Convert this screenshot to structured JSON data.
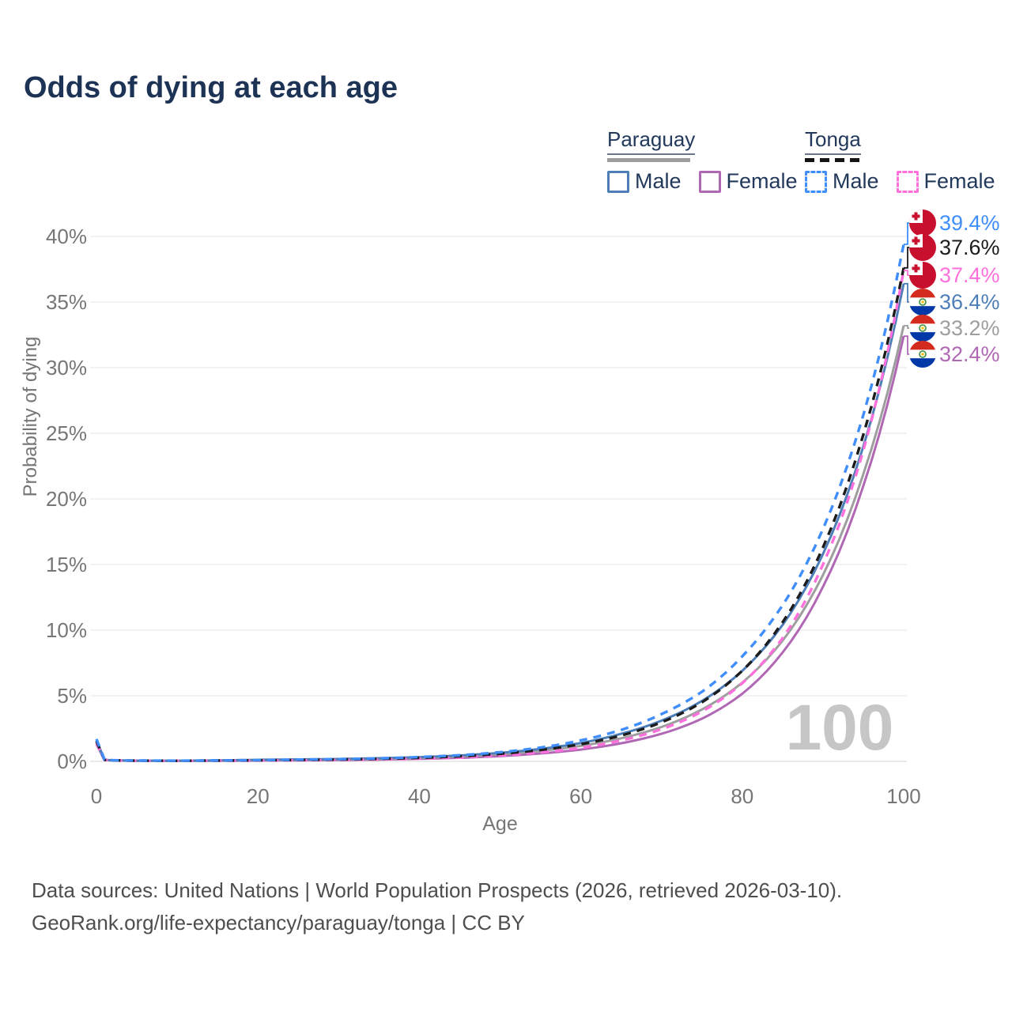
{
  "title": "Odds of dying at each age",
  "watermark_age": "100",
  "legend": {
    "groups": [
      {
        "country": "Paraguay",
        "line_style": "solid",
        "line_color": "#9e9e9e",
        "items": [
          {
            "label": "Male",
            "color": "#4d7eb8",
            "dashed": false
          },
          {
            "label": "Female",
            "color": "#b168b4",
            "dashed": false
          }
        ]
      },
      {
        "country": "Tonga",
        "line_style": "dashed",
        "line_color": "#141414",
        "items": [
          {
            "label": "Male",
            "color": "#3f8efc",
            "dashed": true
          },
          {
            "label": "Female",
            "color": "#ff70dc",
            "dashed": true
          }
        ]
      }
    ]
  },
  "footer": {
    "line1": "Data sources: United Nations | World Population Prospects (2026, retrieved 2026-03-10).",
    "line2": "GeoRank.org/life-expectancy/paraguay/tonga | CC BY"
  },
  "chart_data": {
    "type": "line",
    "title": "Odds of dying at each age",
    "xlabel": "Age",
    "ylabel": "Probability of dying",
    "xlim": [
      0,
      100
    ],
    "ylim": [
      0,
      42
    ],
    "x_ticks": [
      0,
      20,
      40,
      60,
      80,
      100
    ],
    "y_ticks": [
      0,
      5,
      10,
      15,
      20,
      25,
      30,
      35,
      40
    ],
    "y_tick_suffix": "%",
    "grid": "horizontal",
    "hovered_age": 100,
    "ages": [
      0,
      1,
      2,
      5,
      10,
      15,
      20,
      25,
      30,
      35,
      40,
      45,
      50,
      55,
      60,
      65,
      70,
      75,
      80,
      85,
      90,
      95,
      100
    ],
    "series": [
      {
        "name": "Paraguay Female",
        "country": "Paraguay",
        "sex": "Female",
        "color": "#b168b4",
        "dashed": false,
        "flag": "paraguay",
        "end_label": "32.4%",
        "values": [
          1.3,
          0.1,
          0.065,
          0.045,
          0.035,
          0.045,
          0.06,
          0.08,
          0.1,
          0.14,
          0.19,
          0.27,
          0.4,
          0.6,
          0.9,
          1.38,
          2.1,
          3.25,
          5.15,
          8.3,
          13.3,
          21.0,
          32.4
        ]
      },
      {
        "name": "Paraguay Total",
        "country": "Paraguay",
        "sex": "Both",
        "color": "#9e9e9e",
        "dashed": false,
        "flag": "paraguay",
        "end_label": "33.2%",
        "values": [
          1.45,
          0.11,
          0.075,
          0.05,
          0.045,
          0.06,
          0.09,
          0.12,
          0.15,
          0.2,
          0.27,
          0.38,
          0.55,
          0.8,
          1.18,
          1.76,
          2.62,
          3.95,
          6.0,
          9.2,
          14.2,
          21.9,
          33.2
        ]
      },
      {
        "name": "Paraguay Male",
        "country": "Paraguay",
        "sex": "Male",
        "color": "#4d7eb8",
        "dashed": false,
        "flag": "paraguay",
        "end_label": "36.4%",
        "values": [
          1.6,
          0.12,
          0.08,
          0.055,
          0.05,
          0.075,
          0.12,
          0.15,
          0.18,
          0.24,
          0.32,
          0.45,
          0.65,
          0.95,
          1.4,
          2.1,
          3.1,
          4.6,
          6.9,
          10.4,
          15.8,
          24.0,
          36.4
        ]
      },
      {
        "name": "Tonga Female",
        "country": "Tonga",
        "sex": "Female",
        "color": "#ff70dc",
        "dashed": true,
        "flag": "tonga",
        "end_label": "37.4%",
        "values": [
          1.4,
          0.11,
          0.07,
          0.05,
          0.04,
          0.05,
          0.065,
          0.085,
          0.11,
          0.15,
          0.21,
          0.3,
          0.45,
          0.68,
          1.03,
          1.6,
          2.45,
          3.8,
          5.95,
          9.4,
          15.0,
          23.7,
          37.4
        ]
      },
      {
        "name": "Tonga Total",
        "country": "Tonga",
        "sex": "Both",
        "color": "#1c1c1c",
        "dashed": true,
        "flag": "tonga",
        "end_label": "37.6%",
        "values": [
          1.55,
          0.12,
          0.08,
          0.055,
          0.045,
          0.06,
          0.085,
          0.11,
          0.14,
          0.19,
          0.27,
          0.39,
          0.58,
          0.87,
          1.31,
          1.97,
          2.98,
          4.5,
          6.9,
          10.6,
          16.3,
          24.9,
          37.6
        ]
      },
      {
        "name": "Tonga Male",
        "country": "Tonga",
        "sex": "Male",
        "color": "#3f8efc",
        "dashed": true,
        "flag": "tonga",
        "end_label": "39.4%",
        "values": [
          1.7,
          0.13,
          0.09,
          0.06,
          0.05,
          0.07,
          0.1,
          0.13,
          0.17,
          0.23,
          0.33,
          0.47,
          0.7,
          1.05,
          1.6,
          2.4,
          3.6,
          5.3,
          8.0,
          11.9,
          17.7,
          26.4,
          39.4
        ]
      }
    ],
    "end_label_order_top_to_bottom": [
      "39.4%",
      "37.6%",
      "37.4%",
      "36.4%",
      "33.2%",
      "32.4%"
    ]
  }
}
